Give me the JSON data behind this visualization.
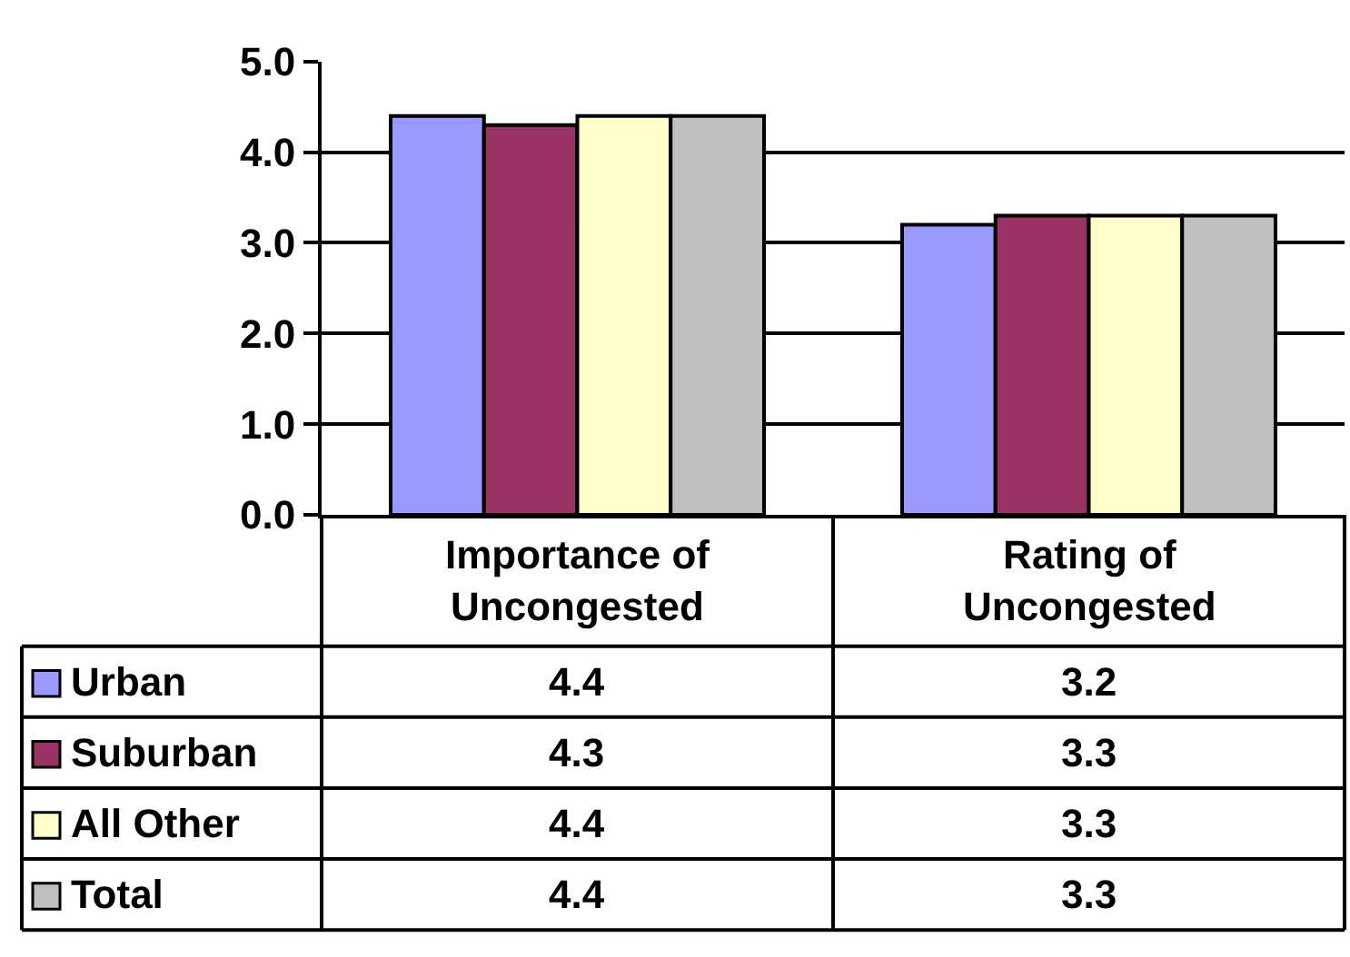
{
  "chart_data": {
    "type": "bar",
    "categories": [
      "Importance of Uncongested",
      "Rating of Uncongested"
    ],
    "series": [
      {
        "name": "Urban",
        "color": "#9999ff",
        "values": [
          4.4,
          3.2
        ]
      },
      {
        "name": "Suburban",
        "color": "#993366",
        "values": [
          4.3,
          3.3
        ]
      },
      {
        "name": "All Other",
        "color": "#ffffcc",
        "values": [
          4.4,
          3.3
        ]
      },
      {
        "name": "Total",
        "color": "#c0c0c0",
        "values": [
          4.4,
          3.3
        ]
      }
    ],
    "ylim": [
      0,
      5
    ],
    "yticks": [
      {
        "value": 0,
        "label": "0.0"
      },
      {
        "value": 1,
        "label": "1.0"
      },
      {
        "value": 2,
        "label": "2.0"
      },
      {
        "value": 3,
        "label": "3.0"
      },
      {
        "value": 4,
        "label": "4.0"
      },
      {
        "value": 5,
        "label": "5.0"
      }
    ],
    "grid": "y",
    "legend": "bottom left",
    "data_labels": true
  }
}
